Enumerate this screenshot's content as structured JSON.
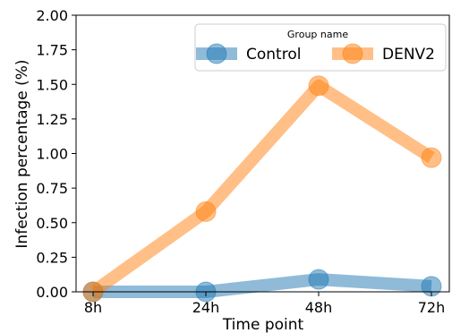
{
  "chart_data": {
    "type": "line",
    "categories": [
      "8h",
      "24h",
      "48h",
      "72h"
    ],
    "xlabel": "Time point",
    "ylabel": "Infection percentage  (%)",
    "ylim": [
      0,
      2.0
    ],
    "yticks": [
      "0.00",
      "0.25",
      "0.50",
      "0.75",
      "1.00",
      "1.25",
      "1.50",
      "1.75",
      "2.00"
    ],
    "grid": false,
    "legend": {
      "title": "Group name",
      "placement": "top-right"
    },
    "series": [
      {
        "name": "Control",
        "values": [
          0.0,
          0.0,
          0.09,
          0.04
        ],
        "color": "#1f77b4"
      },
      {
        "name": "DENV2",
        "values": [
          0.0,
          0.58,
          1.49,
          0.97
        ],
        "color": "#ff7f0e"
      }
    ]
  }
}
